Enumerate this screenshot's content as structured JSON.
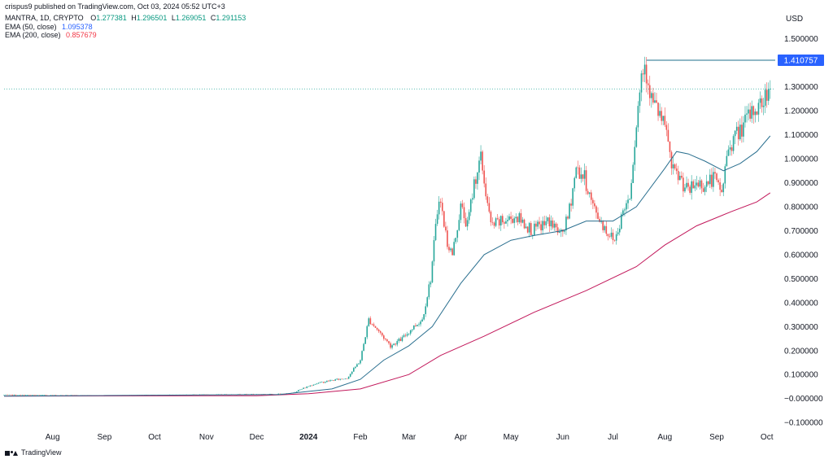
{
  "header": {
    "published": "crispus9 published on TradingView.com, Oct 03, 2024 05:52 UTC+3"
  },
  "legend": {
    "symbol": "MANTRA, 1D, CRYPTO",
    "o_key": "O",
    "o_val": "1.277381",
    "h_key": "H",
    "h_val": "1.296501",
    "l_key": "L",
    "l_val": "1.269051",
    "c_key": "C",
    "c_val": "1.291153",
    "ema50_label": "EMA (50, close)",
    "ema50_val": "1.095378",
    "ema200_label": "EMA (200, close)",
    "ema200_val": "0.857679"
  },
  "footer": {
    "brand": "TradingView"
  },
  "colors": {
    "up": "#26a69a",
    "down": "#ef5350",
    "ema50": "#2a6f8f",
    "ema200": "#c2185b",
    "resistance": "#1f6f8b",
    "price_line": "#26a69a",
    "highlight": "#2962ff"
  },
  "chart_data": {
    "type": "candlestick",
    "currency": "USD",
    "ylim": [
      -0.13,
      1.56
    ],
    "y_ticks": [
      {
        "value": 1.5,
        "label": "1.500000"
      },
      {
        "value": 1.3,
        "label": "1.300000"
      },
      {
        "value": 1.2,
        "label": "1.200000"
      },
      {
        "value": 1.1,
        "label": "1.100000"
      },
      {
        "value": 1.0,
        "label": "1.000000"
      },
      {
        "value": 0.9,
        "label": "0.900000"
      },
      {
        "value": 0.8,
        "label": "0.800000"
      },
      {
        "value": 0.7,
        "label": "0.700000"
      },
      {
        "value": 0.6,
        "label": "0.600000"
      },
      {
        "value": 0.5,
        "label": "0.500000"
      },
      {
        "value": 0.4,
        "label": "0.400000"
      },
      {
        "value": 0.3,
        "label": "0.300000"
      },
      {
        "value": 0.2,
        "label": "0.200000"
      },
      {
        "value": 0.1,
        "label": "0.100000"
      },
      {
        "value": 0.0,
        "label": "−0.000000"
      },
      {
        "value": -0.1,
        "label": "−0.100000"
      }
    ],
    "x_ticks": [
      {
        "date": "2023-08-01",
        "label": "Aug",
        "bold": false
      },
      {
        "date": "2023-09-01",
        "label": "Sep",
        "bold": false
      },
      {
        "date": "2023-10-01",
        "label": "Oct",
        "bold": false
      },
      {
        "date": "2023-11-01",
        "label": "Nov",
        "bold": false
      },
      {
        "date": "2023-12-01",
        "label": "Dec",
        "bold": false
      },
      {
        "date": "2024-01-01",
        "label": "2024",
        "bold": true
      },
      {
        "date": "2024-02-01",
        "label": "Feb",
        "bold": false
      },
      {
        "date": "2024-03-01",
        "label": "Mar",
        "bold": false
      },
      {
        "date": "2024-04-01",
        "label": "Apr",
        "bold": false
      },
      {
        "date": "2024-05-01",
        "label": "May",
        "bold": false
      },
      {
        "date": "2024-06-01",
        "label": "Jun",
        "bold": false
      },
      {
        "date": "2024-07-01",
        "label": "Jul",
        "bold": false
      },
      {
        "date": "2024-08-01",
        "label": "Aug",
        "bold": false
      },
      {
        "date": "2024-09-01",
        "label": "Sep",
        "bold": false
      },
      {
        "date": "2024-10-01",
        "label": "Oct",
        "bold": false
      }
    ],
    "resistance": {
      "value": 1.410757,
      "label": "1.410757",
      "from": "2024-07-21"
    },
    "last_price": 1.291153,
    "price_path": [
      [
        "2023-07-03",
        0.015
      ],
      [
        "2023-09-01",
        0.012
      ],
      [
        "2023-12-10",
        0.018
      ],
      [
        "2023-12-22",
        0.02
      ],
      [
        "2024-01-05",
        0.06
      ],
      [
        "2024-01-15",
        0.075
      ],
      [
        "2024-01-25",
        0.085
      ],
      [
        "2024-02-02",
        0.16
      ],
      [
        "2024-02-07",
        0.33
      ],
      [
        "2024-02-13",
        0.28
      ],
      [
        "2024-02-20",
        0.22
      ],
      [
        "2024-02-27",
        0.25
      ],
      [
        "2024-03-05",
        0.3
      ],
      [
        "2024-03-10",
        0.33
      ],
      [
        "2024-03-15",
        0.5
      ],
      [
        "2024-03-20",
        0.85
      ],
      [
        "2024-03-25",
        0.65
      ],
      [
        "2024-03-28",
        0.6
      ],
      [
        "2024-04-02",
        0.8
      ],
      [
        "2024-04-06",
        0.72
      ],
      [
        "2024-04-10",
        0.9
      ],
      [
        "2024-04-14",
        1.0
      ],
      [
        "2024-04-20",
        0.72
      ],
      [
        "2024-04-28",
        0.74
      ],
      [
        "2024-05-05",
        0.76
      ],
      [
        "2024-05-15",
        0.7
      ],
      [
        "2024-05-25",
        0.74
      ],
      [
        "2024-06-01",
        0.68
      ],
      [
        "2024-06-05",
        0.75
      ],
      [
        "2024-06-10",
        0.96
      ],
      [
        "2024-06-15",
        0.92
      ],
      [
        "2024-06-20",
        0.8
      ],
      [
        "2024-06-28",
        0.7
      ],
      [
        "2024-07-03",
        0.66
      ],
      [
        "2024-07-08",
        0.78
      ],
      [
        "2024-07-12",
        0.85
      ],
      [
        "2024-07-16",
        1.15
      ],
      [
        "2024-07-19",
        1.35
      ],
      [
        "2024-07-21",
        1.4
      ],
      [
        "2024-07-25",
        1.25
      ],
      [
        "2024-07-30",
        1.18
      ],
      [
        "2024-08-04",
        1.08
      ],
      [
        "2024-08-06",
        0.95
      ],
      [
        "2024-08-11",
        0.92
      ],
      [
        "2024-08-16",
        0.86
      ],
      [
        "2024-08-21",
        0.9
      ],
      [
        "2024-08-26",
        0.89
      ],
      [
        "2024-08-31",
        0.92
      ],
      [
        "2024-09-05",
        0.86
      ],
      [
        "2024-09-09",
        1.05
      ],
      [
        "2024-09-14",
        1.1
      ],
      [
        "2024-09-19",
        1.15
      ],
      [
        "2024-09-24",
        1.2
      ],
      [
        "2024-09-29",
        1.23
      ],
      [
        "2024-10-03",
        1.29
      ]
    ],
    "ema50": [
      [
        "2023-07-03",
        0.01
      ],
      [
        "2023-12-15",
        0.017
      ],
      [
        "2024-01-15",
        0.04
      ],
      [
        "2024-02-01",
        0.08
      ],
      [
        "2024-02-15",
        0.16
      ],
      [
        "2024-03-01",
        0.22
      ],
      [
        "2024-03-15",
        0.3
      ],
      [
        "2024-04-01",
        0.48
      ],
      [
        "2024-04-15",
        0.6
      ],
      [
        "2024-05-01",
        0.66
      ],
      [
        "2024-05-15",
        0.68
      ],
      [
        "2024-06-01",
        0.7
      ],
      [
        "2024-06-15",
        0.74
      ],
      [
        "2024-07-01",
        0.74
      ],
      [
        "2024-07-15",
        0.8
      ],
      [
        "2024-08-01",
        0.96
      ],
      [
        "2024-08-08",
        1.03
      ],
      [
        "2024-08-15",
        1.02
      ],
      [
        "2024-08-25",
        0.99
      ],
      [
        "2024-09-05",
        0.95
      ],
      [
        "2024-09-15",
        0.98
      ],
      [
        "2024-09-25",
        1.03
      ],
      [
        "2024-10-03",
        1.095
      ]
    ],
    "ema200": [
      [
        "2023-07-03",
        0.01
      ],
      [
        "2023-12-01",
        0.012
      ],
      [
        "2024-01-01",
        0.02
      ],
      [
        "2024-02-01",
        0.04
      ],
      [
        "2024-03-01",
        0.1
      ],
      [
        "2024-03-20",
        0.18
      ],
      [
        "2024-04-15",
        0.26
      ],
      [
        "2024-05-15",
        0.36
      ],
      [
        "2024-06-15",
        0.45
      ],
      [
        "2024-07-15",
        0.55
      ],
      [
        "2024-08-01",
        0.64
      ],
      [
        "2024-08-20",
        0.72
      ],
      [
        "2024-09-10",
        0.78
      ],
      [
        "2024-09-25",
        0.82
      ],
      [
        "2024-10-03",
        0.858
      ]
    ]
  }
}
